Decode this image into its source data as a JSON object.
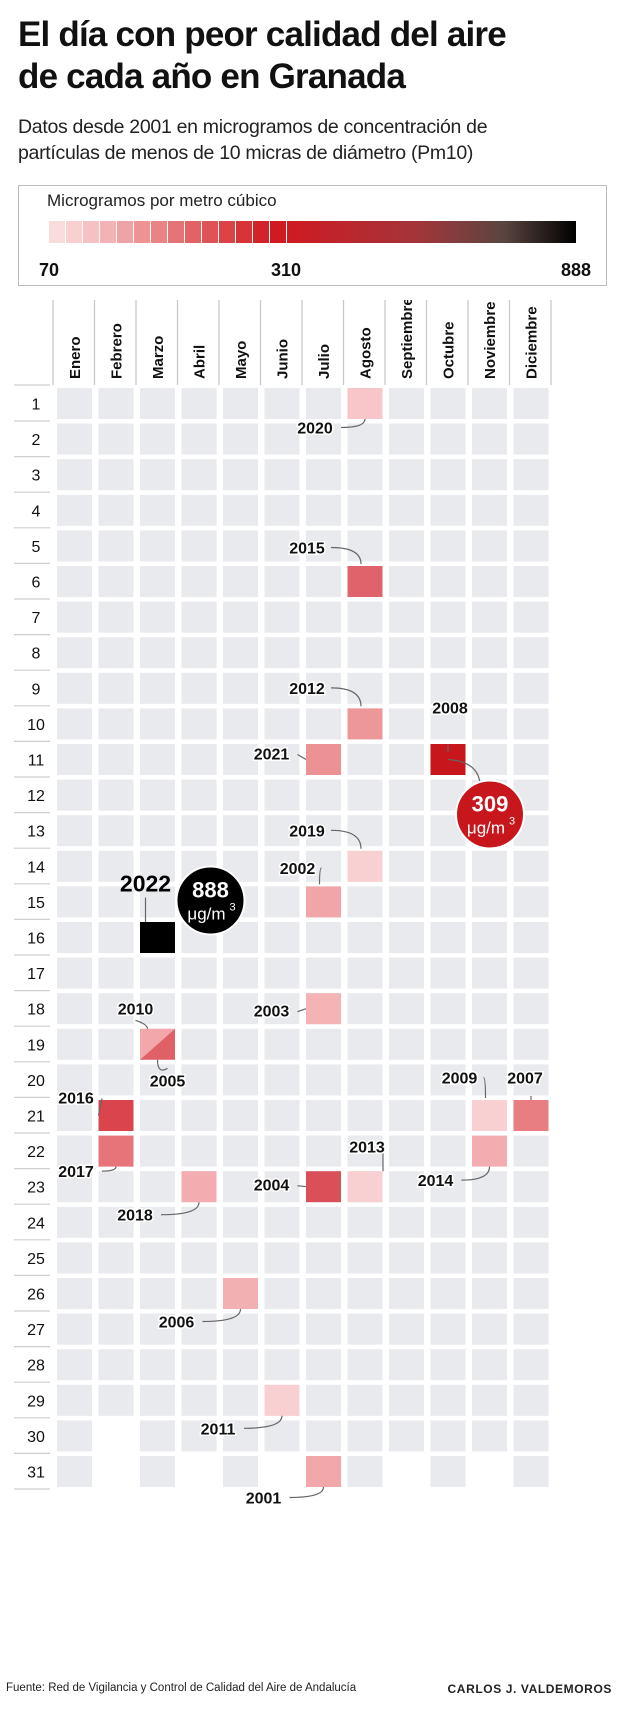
{
  "header": {
    "title_line1": "El día con peor calidad del aire",
    "title_line2": "de cada año en Granada",
    "subtitle_line1": "Datos desde 2001  en microgramos de concentración de",
    "subtitle_line2": "partículas de menos de 10 micras de diámetro (Pm10)"
  },
  "legend": {
    "title": "Microgramos  por metro cúbico",
    "min_label": "70",
    "mid_label": "310",
    "max_label": "888",
    "min_value": 70,
    "mid_value": 310,
    "max_value": 888,
    "colors": [
      "#f9d3d3",
      "#d71920",
      "#000000"
    ]
  },
  "chart_data": {
    "type": "heatmap",
    "months": [
      "Enero",
      "Febrero",
      "Marzo",
      "Abril",
      "Mayo",
      "Junio",
      "Julio",
      "Agosto",
      "Septiembre",
      "Octubre",
      "Noviembre",
      "Diciembre"
    ],
    "days": [
      1,
      2,
      3,
      4,
      5,
      6,
      7,
      8,
      9,
      10,
      11,
      12,
      13,
      14,
      15,
      16,
      17,
      18,
      19,
      20,
      21,
      22,
      23,
      24,
      25,
      26,
      27,
      28,
      29,
      30,
      31
    ],
    "unit_line1": "μg/m",
    "unit_sup": "3",
    "cells": [
      {
        "year": "2020",
        "month": 8,
        "day": 1,
        "value": 90,
        "color": "#f8c6c8"
      },
      {
        "year": "2015",
        "month": 8,
        "day": 6,
        "value": 240,
        "color": "#e0636b"
      },
      {
        "year": "2012",
        "month": 8,
        "day": 10,
        "value": 175,
        "color": "#ee9799"
      },
      {
        "year": "2021",
        "month": 7,
        "day": 11,
        "value": 180,
        "color": "#ec9194"
      },
      {
        "year": "2008",
        "month": 10,
        "day": 11,
        "value": 309,
        "color": "#c8161d"
      },
      {
        "year": "2019",
        "month": 8,
        "day": 14,
        "value": 85,
        "color": "#f9d0d1"
      },
      {
        "year": "2002",
        "month": 7,
        "day": 15,
        "value": 150,
        "color": "#f1a5a8"
      },
      {
        "year": "2022",
        "month": 3,
        "day": 16,
        "value": 888,
        "color": "#000000"
      },
      {
        "year": "2003",
        "month": 7,
        "day": 18,
        "value": 120,
        "color": "#f4b3b5"
      },
      {
        "year": "2010",
        "month": 3,
        "day": 19,
        "value": 140,
        "color": "#f2a8aa"
      },
      {
        "year": "2005",
        "month": 3,
        "day": 19,
        "value": 230,
        "color": "#e06068"
      },
      {
        "year": "2016",
        "month": 2,
        "day": 21,
        "value": 260,
        "color": "#d9444d"
      },
      {
        "year": "2009",
        "month": 11,
        "day": 21,
        "value": 85,
        "color": "#f9d0d1"
      },
      {
        "year": "2007",
        "month": 12,
        "day": 21,
        "value": 200,
        "color": "#e87d82"
      },
      {
        "year": "2017",
        "month": 2,
        "day": 22,
        "value": 210,
        "color": "#e67479"
      },
      {
        "year": "2014",
        "month": 11,
        "day": 22,
        "value": 130,
        "color": "#f3adb0"
      },
      {
        "year": "2018",
        "month": 4,
        "day": 23,
        "value": 130,
        "color": "#f3adb0"
      },
      {
        "year": "2004",
        "month": 7,
        "day": 23,
        "value": 250,
        "color": "#db5058"
      },
      {
        "year": "2013",
        "month": 8,
        "day": 23,
        "value": 85,
        "color": "#f9d0d1"
      },
      {
        "year": "2006",
        "month": 5,
        "day": 26,
        "value": 125,
        "color": "#f3b0b3"
      },
      {
        "year": "2011",
        "month": 6,
        "day": 29,
        "value": 85,
        "color": "#f9d0d1"
      },
      {
        "year": "2001",
        "month": 7,
        "day": 31,
        "value": 140,
        "color": "#f2a8aa"
      }
    ],
    "callouts": [
      {
        "year": "2022",
        "value_label": "888"
      },
      {
        "year": "2008",
        "value_label": "309"
      }
    ]
  },
  "footer": {
    "source": "Fuente: Red de Vigilancia y Control de Calidad del Aire de Andalucía",
    "author": "CARLOS J. VALDEMOROS"
  },
  "colors": {
    "empty_cell": "#e8eaed",
    "grid_line": "#c9c9c9",
    "highlight_red": "#c8161d"
  }
}
